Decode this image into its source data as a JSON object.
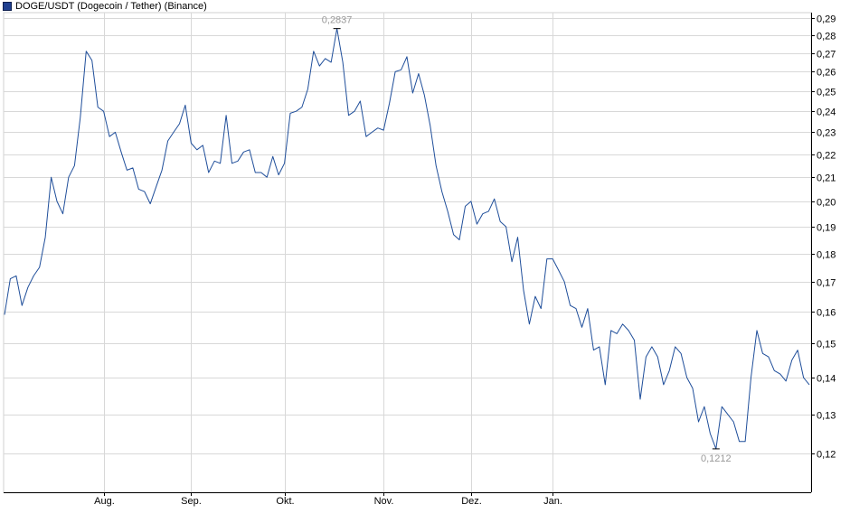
{
  "chart_data": {
    "type": "line",
    "legend": {
      "label": "DOGE/USDT (Dogecoin / Tether) (Binance)",
      "color": "#1f3f8f",
      "placement": "top-left"
    },
    "series": [
      {
        "name": "DOGE/USDT (Dogecoin / Tether) (Binance)",
        "color": "#1f4e9a",
        "values": [
          0.159,
          0.171,
          0.172,
          0.162,
          0.168,
          0.172,
          0.175,
          0.186,
          0.21,
          0.2,
          0.195,
          0.21,
          0.215,
          0.237,
          0.271,
          0.266,
          0.242,
          0.24,
          0.228,
          0.23,
          0.221,
          0.213,
          0.214,
          0.205,
          0.204,
          0.199,
          0.206,
          0.213,
          0.226,
          0.23,
          0.234,
          0.243,
          0.225,
          0.222,
          0.224,
          0.212,
          0.217,
          0.216,
          0.238,
          0.216,
          0.217,
          0.221,
          0.222,
          0.212,
          0.212,
          0.21,
          0.219,
          0.211,
          0.216,
          0.239,
          0.24,
          0.242,
          0.251,
          0.271,
          0.263,
          0.267,
          0.265,
          0.2837,
          0.265,
          0.238,
          0.24,
          0.245,
          0.228,
          0.23,
          0.232,
          0.231,
          0.244,
          0.26,
          0.261,
          0.268,
          0.249,
          0.259,
          0.248,
          0.233,
          0.215,
          0.204,
          0.196,
          0.187,
          0.185,
          0.198,
          0.2,
          0.191,
          0.195,
          0.196,
          0.201,
          0.192,
          0.19,
          0.177,
          0.186,
          0.167,
          0.156,
          0.165,
          0.161,
          0.178,
          0.178,
          0.174,
          0.17,
          0.162,
          0.161,
          0.155,
          0.161,
          0.148,
          0.149,
          0.138,
          0.154,
          0.153,
          0.156,
          0.154,
          0.151,
          0.134,
          0.146,
          0.149,
          0.146,
          0.138,
          0.142,
          0.149,
          0.147,
          0.14,
          0.137,
          0.128,
          0.132,
          0.125,
          0.1212,
          0.132,
          0.13,
          0.128,
          0.123,
          0.123,
          0.14,
          0.154,
          0.147,
          0.146,
          0.142,
          0.141,
          0.139,
          0.145,
          0.148,
          0.14,
          0.138
        ]
      }
    ],
    "x_ticks": [
      "Aug.",
      "Sep.",
      "Okt.",
      "Nov.",
      "Dez.",
      "Jan."
    ],
    "x_tick_index": [
      17,
      32,
      48,
      65,
      80,
      94
    ],
    "y_ticks": [
      "0,12",
      "0,13",
      "0,14",
      "0,15",
      "0,16",
      "0,17",
      "0,18",
      "0,19",
      "0,20",
      "0,21",
      "0,22",
      "0,23",
      "0,24",
      "0,25",
      "0,26",
      "0,27",
      "0,28",
      "0,29"
    ],
    "y_tick_values": [
      0.12,
      0.13,
      0.14,
      0.15,
      0.16,
      0.17,
      0.18,
      0.19,
      0.2,
      0.21,
      0.22,
      0.23,
      0.24,
      0.25,
      0.26,
      0.27,
      0.28,
      0.29
    ],
    "ylim": [
      0.111,
      0.293
    ],
    "y_scale": "log",
    "grid": true,
    "annotations": [
      {
        "label": "0,2837",
        "index": 57,
        "value": 0.2837,
        "kind": "high"
      },
      {
        "label": "0,1212",
        "index": 122,
        "value": 0.1212,
        "kind": "low"
      }
    ],
    "colors": {
      "line": "#1f4e9a",
      "grid": "#d8d8d8",
      "axis": "#000000",
      "annotation_text": "#999999",
      "tick_text": "#000000"
    }
  }
}
